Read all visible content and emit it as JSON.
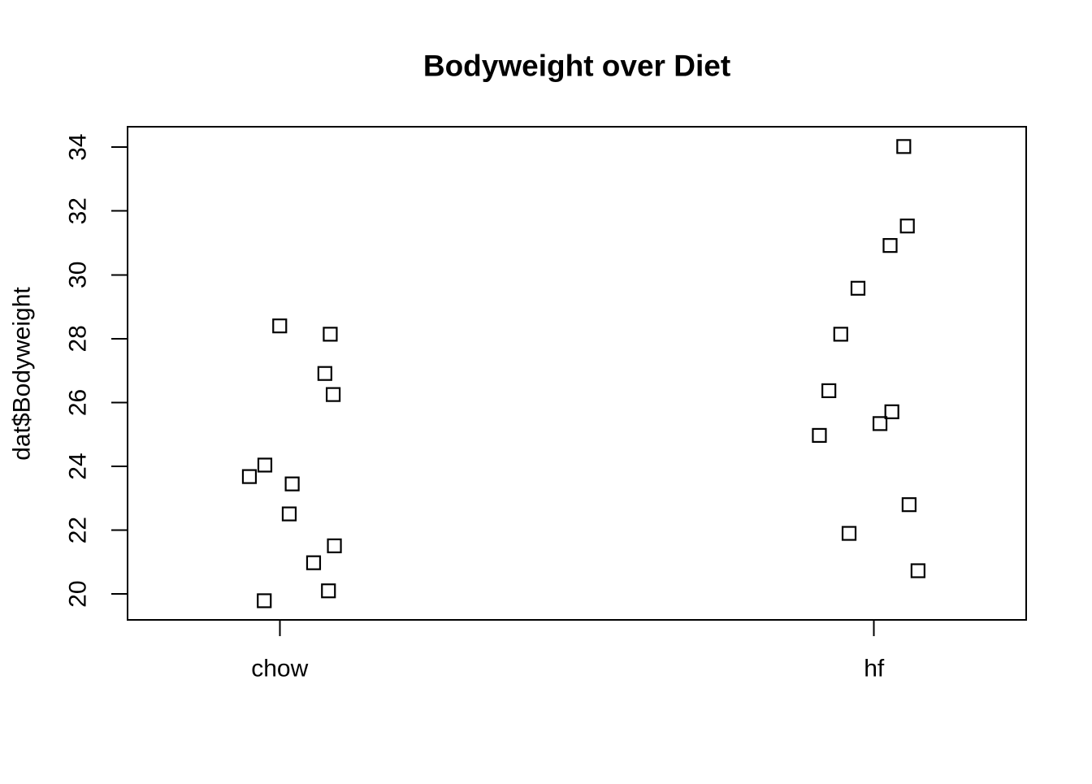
{
  "chart_data": {
    "type": "scatter",
    "subtype": "stripchart-jitter",
    "title": "Bodyweight over Diet",
    "xlabel": "",
    "ylabel": "dat$Bodyweight",
    "categories": [
      "chow",
      "hf"
    ],
    "x_category_positions": [
      1,
      2
    ],
    "yticks": [
      20,
      22,
      24,
      26,
      28,
      30,
      32,
      34
    ],
    "ylim": [
      19.19,
      34.64
    ],
    "xlim": [
      0.744,
      2.256
    ],
    "grid": false,
    "legend": null,
    "marker": "open-square",
    "marker_color": "#000000",
    "background_color": "#FFFFFF",
    "axis_color": "#000000",
    "series": [
      {
        "name": "chow",
        "points": [
          [
            1.0,
            28.4
          ],
          [
            1.085,
            28.14
          ],
          [
            1.076,
            26.91
          ],
          [
            1.09,
            26.25
          ],
          [
            0.975,
            24.04
          ],
          [
            0.949,
            23.68
          ],
          [
            1.021,
            23.45
          ],
          [
            1.016,
            22.51
          ],
          [
            1.092,
            21.51
          ],
          [
            1.057,
            20.98
          ],
          [
            1.082,
            20.1
          ],
          [
            0.974,
            19.79
          ]
        ]
      },
      {
        "name": "hf",
        "points": [
          [
            2.05,
            34.02
          ],
          [
            2.056,
            31.53
          ],
          [
            2.027,
            30.92
          ],
          [
            1.973,
            29.58
          ],
          [
            1.944,
            28.14
          ],
          [
            1.924,
            26.37
          ],
          [
            2.03,
            25.71
          ],
          [
            2.01,
            25.34
          ],
          [
            1.908,
            24.97
          ],
          [
            2.059,
            22.8
          ],
          [
            1.958,
            21.9
          ],
          [
            2.074,
            20.73
          ]
        ]
      }
    ]
  }
}
